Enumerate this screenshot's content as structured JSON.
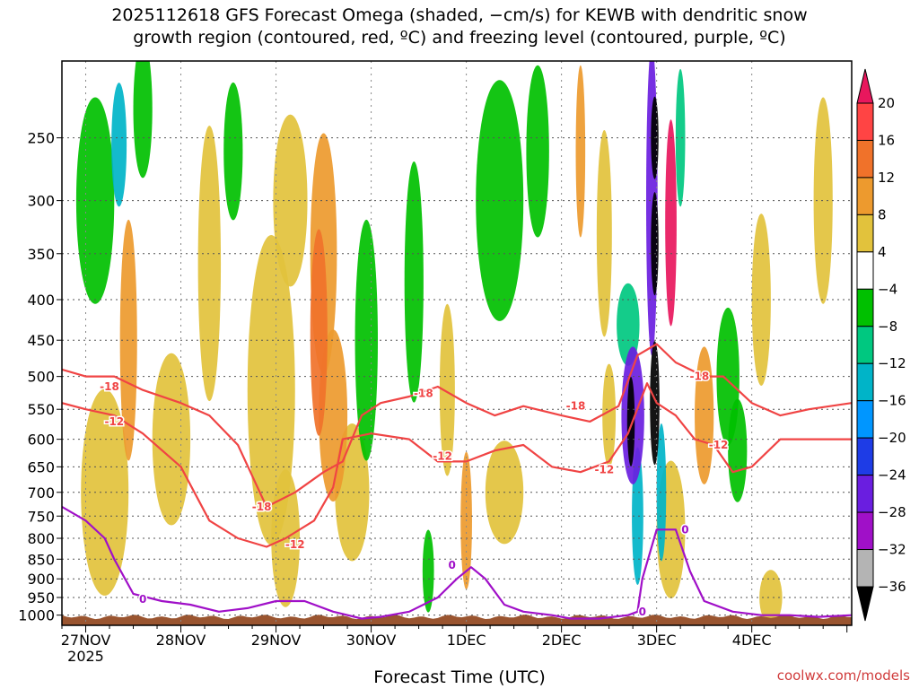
{
  "title_line1": "2025112618 GFS Forecast Omega (shaded, −cm/s) for KEWB with dendritic snow",
  "title_line2": "growth region (contoured, red, ºC) and freezing level (contoured, purple, ºC)",
  "xlabel": "Forecast Time (UTC)",
  "credit": "coolwx.com/models",
  "chart_data": {
    "type": "heatmap",
    "x_ticks": [
      {
        "label": "27NOV",
        "sub": "2025",
        "day": 27.0
      },
      {
        "label": "28NOV",
        "sub": "",
        "day": 28.0
      },
      {
        "label": "29NOV",
        "sub": "",
        "day": 29.0
      },
      {
        "label": "30NOV",
        "sub": "",
        "day": 30.0
      },
      {
        "label": "1DEC",
        "sub": "",
        "day": 31.0
      },
      {
        "label": "2DEC",
        "sub": "",
        "day": 32.0
      },
      {
        "label": "3DEC",
        "sub": "",
        "day": 33.0
      },
      {
        "label": "4DEC",
        "sub": "",
        "day": 34.0
      }
    ],
    "x_range_days": [
      26.75,
      35.05
    ],
    "y_ticks": [
      250,
      300,
      350,
      400,
      450,
      500,
      550,
      600,
      650,
      700,
      750,
      800,
      850,
      900,
      950,
      1000
    ],
    "y_range_hpa": [
      200,
      1030
    ],
    "y_scale": "log-pressure",
    "colorbar": {
      "labels": [
        "20",
        "16",
        "12",
        "8",
        "4",
        "−4",
        "−8",
        "−12",
        "−16",
        "−20",
        "−24",
        "−28",
        "−32",
        "−36"
      ],
      "bins": [
        {
          "color": "#e8175d",
          "range": ">20"
        },
        {
          "color": "#ff4444",
          "range": "16-20"
        },
        {
          "color": "#f0722a",
          "range": "12-16"
        },
        {
          "color": "#ed9a2e",
          "range": "8-12"
        },
        {
          "color": "#e2c23c",
          "range": "4-8"
        },
        {
          "color": "#ffffff",
          "range": "-4-4"
        },
        {
          "color": "#00c000",
          "range": "-8--4"
        },
        {
          "color": "#00c880",
          "range": "-12--8"
        },
        {
          "color": "#00b4c8",
          "range": "-16--12"
        },
        {
          "color": "#0096ff",
          "range": "-20--16"
        },
        {
          "color": "#1e3ce6",
          "range": "-24--20"
        },
        {
          "color": "#6a1ee0",
          "range": "-28--24"
        },
        {
          "color": "#a010c8",
          "range": "-32--28"
        },
        {
          "color": "#b4b4b4",
          "range": "-36--32"
        },
        {
          "color": "#000000",
          "range": "<-36"
        }
      ]
    },
    "omega_blobs": [
      {
        "day": 27.35,
        "hpa": 255,
        "w": 0.08,
        "hh": 0.18,
        "v": -16
      },
      {
        "day": 27.1,
        "hpa": 300,
        "w": 0.2,
        "hh": 0.3,
        "v": -6
      },
      {
        "day": 27.6,
        "hpa": 230,
        "w": 0.1,
        "hh": 0.2,
        "v": -6
      },
      {
        "day": 27.45,
        "hpa": 450,
        "w": 0.09,
        "hh": 0.35,
        "v": 9
      },
      {
        "day": 27.2,
        "hpa": 700,
        "w": 0.25,
        "hh": 0.3,
        "v": 5
      },
      {
        "day": 27.9,
        "hpa": 600,
        "w": 0.2,
        "hh": 0.25,
        "v": 5
      },
      {
        "day": 28.3,
        "hpa": 360,
        "w": 0.12,
        "hh": 0.4,
        "v": 5
      },
      {
        "day": 28.55,
        "hpa": 260,
        "w": 0.1,
        "hh": 0.2,
        "v": -6
      },
      {
        "day": 28.95,
        "hpa": 520,
        "w": 0.25,
        "hh": 0.45,
        "v": 6
      },
      {
        "day": 29.15,
        "hpa": 300,
        "w": 0.18,
        "hh": 0.25,
        "v": 6
      },
      {
        "day": 29.45,
        "hpa": 440,
        "w": 0.09,
        "hh": 0.3,
        "v": 15
      },
      {
        "day": 29.5,
        "hpa": 350,
        "w": 0.14,
        "hh": 0.35,
        "v": 10
      },
      {
        "day": 29.6,
        "hpa": 560,
        "w": 0.15,
        "hh": 0.25,
        "v": 9
      },
      {
        "day": 29.1,
        "hpa": 800,
        "w": 0.15,
        "hh": 0.2,
        "v": 5
      },
      {
        "day": 29.8,
        "hpa": 700,
        "w": 0.18,
        "hh": 0.2,
        "v": 5
      },
      {
        "day": 29.95,
        "hpa": 450,
        "w": 0.12,
        "hh": 0.35,
        "v": -6
      },
      {
        "day": 30.45,
        "hpa": 380,
        "w": 0.1,
        "hh": 0.35,
        "v": -6
      },
      {
        "day": 30.6,
        "hpa": 880,
        "w": 0.06,
        "hh": 0.12,
        "v": -6
      },
      {
        "day": 30.8,
        "hpa": 520,
        "w": 0.08,
        "hh": 0.25,
        "v": 6
      },
      {
        "day": 31.0,
        "hpa": 760,
        "w": 0.06,
        "hh": 0.2,
        "v": 10
      },
      {
        "day": 31.4,
        "hpa": 700,
        "w": 0.2,
        "hh": 0.15,
        "v": 5
      },
      {
        "day": 31.35,
        "hpa": 300,
        "w": 0.25,
        "hh": 0.35,
        "v": -6
      },
      {
        "day": 31.75,
        "hpa": 260,
        "w": 0.12,
        "hh": 0.25,
        "v": -6
      },
      {
        "day": 32.2,
        "hpa": 260,
        "w": 0.05,
        "hh": 0.25,
        "v": 10
      },
      {
        "day": 32.45,
        "hpa": 330,
        "w": 0.08,
        "hh": 0.3,
        "v": 6
      },
      {
        "day": 32.5,
        "hpa": 560,
        "w": 0.07,
        "hh": 0.15,
        "v": 5
      },
      {
        "day": 32.7,
        "hpa": 430,
        "w": 0.12,
        "hh": 0.12,
        "v": -12
      },
      {
        "day": 32.75,
        "hpa": 560,
        "w": 0.12,
        "hh": 0.2,
        "v": -28
      },
      {
        "day": 32.8,
        "hpa": 750,
        "w": 0.06,
        "hh": 0.2,
        "v": -14
      },
      {
        "day": 32.95,
        "hpa": 300,
        "w": 0.06,
        "hh": 0.45,
        "v": -26
      },
      {
        "day": 32.98,
        "hpa": 250,
        "w": 0.04,
        "hh": 0.12,
        "v": -40
      },
      {
        "day": 32.98,
        "hpa": 340,
        "w": 0.04,
        "hh": 0.15,
        "v": -40
      },
      {
        "day": 32.98,
        "hpa": 540,
        "w": 0.05,
        "hh": 0.18,
        "v": -40
      },
      {
        "day": 32.73,
        "hpa": 570,
        "w": 0.04,
        "hh": 0.13,
        "v": -40
      },
      {
        "day": 33.05,
        "hpa": 700,
        "w": 0.05,
        "hh": 0.2,
        "v": -14
      },
      {
        "day": 33.15,
        "hpa": 320,
        "w": 0.06,
        "hh": 0.3,
        "v": 21
      },
      {
        "day": 33.25,
        "hpa": 250,
        "w": 0.05,
        "hh": 0.2,
        "v": -10
      },
      {
        "day": 33.5,
        "hpa": 560,
        "w": 0.1,
        "hh": 0.2,
        "v": 9
      },
      {
        "day": 33.15,
        "hpa": 780,
        "w": 0.15,
        "hh": 0.2,
        "v": 6
      },
      {
        "day": 33.75,
        "hpa": 500,
        "w": 0.12,
        "hh": 0.2,
        "v": -8
      },
      {
        "day": 33.85,
        "hpa": 620,
        "w": 0.1,
        "hh": 0.15,
        "v": -6
      },
      {
        "day": 34.1,
        "hpa": 400,
        "w": 0.1,
        "hh": 0.25,
        "v": 6
      },
      {
        "day": 34.2,
        "hpa": 950,
        "w": 0.12,
        "hh": 0.08,
        "v": 5
      },
      {
        "day": 34.75,
        "hpa": 300,
        "w": 0.1,
        "hh": 0.3,
        "v": 6
      }
    ],
    "contours": [
      {
        "name": "-18",
        "color": "#f04444",
        "kind": "dgz",
        "points": [
          [
            26.75,
            490
          ],
          [
            27.0,
            500
          ],
          [
            27.3,
            500
          ],
          [
            27.6,
            520
          ],
          [
            28.0,
            540
          ],
          [
            28.3,
            560
          ],
          [
            28.6,
            610
          ],
          [
            28.9,
            730
          ],
          [
            29.2,
            700
          ],
          [
            29.5,
            660
          ],
          [
            29.7,
            640
          ],
          [
            29.9,
            560
          ],
          [
            30.1,
            540
          ],
          [
            30.4,
            530
          ],
          [
            30.7,
            515
          ],
          [
            31.0,
            540
          ],
          [
            31.3,
            560
          ],
          [
            31.6,
            545
          ],
          [
            32.0,
            560
          ],
          [
            32.3,
            570
          ],
          [
            32.6,
            545
          ],
          [
            32.8,
            470
          ],
          [
            33.0,
            455
          ],
          [
            33.2,
            480
          ],
          [
            33.5,
            500
          ],
          [
            33.7,
            500
          ],
          [
            34.0,
            540
          ],
          [
            34.3,
            560
          ],
          [
            34.6,
            550
          ],
          [
            35.05,
            540
          ]
        ],
        "label_at": [
          [
            27.25,
            515
          ],
          [
            28.85,
            730
          ],
          [
            30.55,
            525
          ],
          [
            32.15,
            545
          ],
          [
            33.45,
            500
          ]
        ]
      },
      {
        "name": "-12",
        "color": "#f04444",
        "kind": "dgz",
        "points": [
          [
            26.75,
            540
          ],
          [
            27.0,
            550
          ],
          [
            27.3,
            560
          ],
          [
            27.6,
            590
          ],
          [
            28.0,
            650
          ],
          [
            28.3,
            760
          ],
          [
            28.6,
            800
          ],
          [
            28.9,
            820
          ],
          [
            29.1,
            800
          ],
          [
            29.4,
            760
          ],
          [
            29.6,
            690
          ],
          [
            29.7,
            600
          ],
          [
            30.0,
            590
          ],
          [
            30.4,
            600
          ],
          [
            30.7,
            640
          ],
          [
            31.0,
            640
          ],
          [
            31.3,
            620
          ],
          [
            31.6,
            610
          ],
          [
            31.9,
            650
          ],
          [
            32.2,
            660
          ],
          [
            32.5,
            640
          ],
          [
            32.7,
            590
          ],
          [
            32.9,
            510
          ],
          [
            33.0,
            540
          ],
          [
            33.2,
            560
          ],
          [
            33.4,
            600
          ],
          [
            33.6,
            610
          ],
          [
            33.8,
            660
          ],
          [
            34.0,
            650
          ],
          [
            34.3,
            600
          ],
          [
            34.6,
            600
          ],
          [
            35.05,
            600
          ]
        ],
        "label_at": [
          [
            27.3,
            570
          ],
          [
            29.2,
            815
          ],
          [
            30.75,
            630
          ],
          [
            32.45,
            655
          ],
          [
            33.65,
            610
          ]
        ]
      },
      {
        "name": "0",
        "color": "#a010c8",
        "kind": "frz",
        "points": [
          [
            26.75,
            730
          ],
          [
            27.0,
            760
          ],
          [
            27.2,
            800
          ],
          [
            27.3,
            850
          ],
          [
            27.5,
            940
          ],
          [
            27.8,
            960
          ],
          [
            28.1,
            970
          ],
          [
            28.4,
            990
          ],
          [
            28.7,
            980
          ],
          [
            29.0,
            960
          ],
          [
            29.3,
            960
          ],
          [
            29.6,
            990
          ],
          [
            29.9,
            1010
          ],
          [
            30.1,
            1005
          ],
          [
            30.4,
            990
          ],
          [
            30.7,
            950
          ],
          [
            30.9,
            900
          ],
          [
            31.05,
            870
          ],
          [
            31.2,
            900
          ],
          [
            31.4,
            970
          ],
          [
            31.6,
            990
          ],
          [
            31.9,
            1000
          ],
          [
            32.1,
            1010
          ],
          [
            32.4,
            1010
          ],
          [
            32.7,
            1000
          ],
          [
            32.8,
            990
          ],
          [
            32.85,
            900
          ],
          [
            33.0,
            780
          ],
          [
            33.2,
            780
          ],
          [
            33.35,
            880
          ],
          [
            33.5,
            960
          ],
          [
            33.8,
            990
          ],
          [
            34.1,
            1000
          ],
          [
            34.4,
            1000
          ],
          [
            34.7,
            1005
          ],
          [
            35.05,
            1000
          ]
        ],
        "label_at": [
          [
            27.6,
            955
          ],
          [
            30.85,
            865
          ],
          [
            32.85,
            990
          ],
          [
            33.3,
            780
          ]
        ]
      }
    ]
  }
}
